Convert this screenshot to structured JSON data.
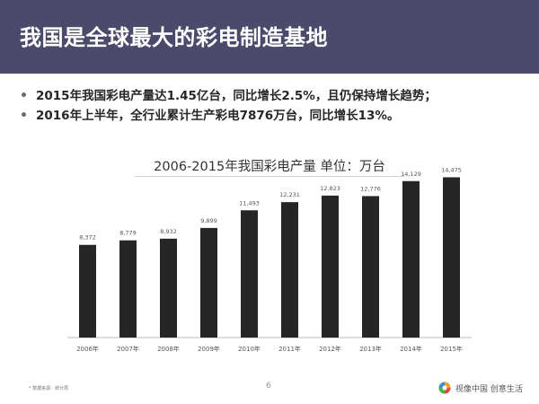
{
  "header": {
    "title": "我国是全球最大的彩电制造基地"
  },
  "bullets": [
    "2015年我国彩电产量达1.45亿台，同比增长2.5%，且仍保持增长趋势；",
    "2016年上半年，全行业累计生产彩电7876万台，同比增长13%。"
  ],
  "bullet_marker": "•",
  "chart_data": {
    "type": "bar",
    "title": "2006-2015年我国彩电产量  单位：万台",
    "categories": [
      "2006年",
      "2007年",
      "2008年",
      "2009年",
      "2010年",
      "2011年",
      "2012年",
      "2013年",
      "2014年",
      "2015年"
    ],
    "values": [
      8372,
      8779,
      8932,
      9899,
      11493,
      12231,
      12823,
      12776,
      14129,
      14475
    ],
    "value_labels": [
      "8,372",
      "8,779",
      "8,932",
      "9,899",
      "11,493",
      "12,231",
      "12,823",
      "12,776",
      "14,129",
      "14,475"
    ],
    "ylim": [
      0,
      15000
    ],
    "grid": false,
    "legend": "none",
    "bar_color": "#262626"
  },
  "footer": {
    "source_note": "* 数据来源：统计局",
    "page_number": "6",
    "brand_text": "视像中国 创意生活",
    "brand_logo_icon": "brand-logo-icon"
  },
  "colors": {
    "header_bg": "#4c4a6a",
    "header_text": "#ffffff"
  }
}
